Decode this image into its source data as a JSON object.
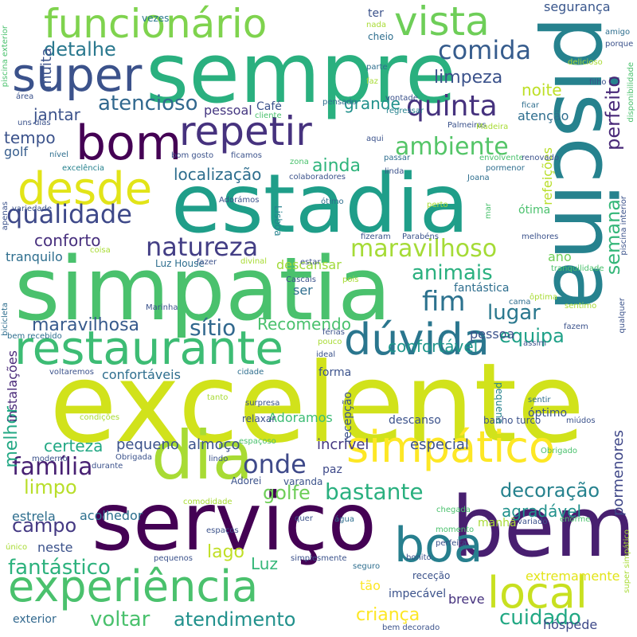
{
  "palette": [
    "#440154",
    "#46327e",
    "#365c8d",
    "#277f8e",
    "#1fa187",
    "#4ac16d",
    "#a0da39",
    "#fde725"
  ],
  "words": [
    [
      "excelente",
      "#d1e21b"
    ],
    [
      "serviço",
      "#440154"
    ],
    [
      "estadia",
      "#1f9e89"
    ],
    [
      "simpatia",
      "#4ac16d"
    ],
    [
      "piscina",
      "#26828e"
    ],
    [
      "sempre",
      "#2ab07f"
    ],
    [
      "bem",
      "#481f70"
    ],
    [
      "restaurante",
      "#3dbc74"
    ],
    [
      "dia",
      "#a8db34"
    ],
    [
      "simpático",
      "#fde725"
    ],
    [
      "boa",
      "#277f8e"
    ],
    [
      "local",
      "#c8e020"
    ],
    [
      "dúvida",
      "#2a768e"
    ],
    [
      "experiência",
      "#4ac16d"
    ],
    [
      "desde",
      "#e2e418"
    ],
    [
      "repetir",
      "#46327e"
    ],
    [
      "funcionário",
      "#7fd34e"
    ],
    [
      "vista",
      "#6ece58"
    ],
    [
      "bom",
      "#440154"
    ],
    [
      "super",
      "#3b528b"
    ],
    [
      "família",
      "#482173"
    ],
    [
      "onde",
      "#3e4989"
    ],
    [
      "comida",
      "#365c8d"
    ],
    [
      "quinta",
      "#46327e"
    ],
    [
      "natureza",
      "#433e85"
    ],
    [
      "maravilhoso",
      "#a5db36"
    ],
    [
      "fim",
      "#2c728e"
    ],
    [
      "qualidade",
      "#3e4989"
    ],
    [
      "ambiente",
      "#54c568"
    ],
    [
      "atencioso",
      "#31688e"
    ],
    [
      "semana",
      "#35b779"
    ],
    [
      "perfeito",
      "#482878"
    ],
    [
      "lugar",
      "#2a788e"
    ],
    [
      "detalhe",
      "#2a788e"
    ],
    [
      "limpeza",
      "#3b528b"
    ],
    [
      "decoração",
      "#26828e"
    ],
    [
      "bastante",
      "#2ab07f"
    ],
    [
      "limpo",
      "#b8de29"
    ],
    [
      "atendimento",
      "#21918c"
    ],
    [
      "voltar",
      "#4ac16d"
    ],
    [
      "cuidado",
      "#22a884"
    ],
    [
      "fantástico",
      "#2db27d"
    ],
    [
      "criança",
      "#fde725"
    ],
    [
      "campo",
      "#443983"
    ],
    [
      "equipa",
      "#1fa188"
    ],
    [
      "animais",
      "#2ab07f"
    ],
    [
      "golfe",
      "#6ece58"
    ],
    [
      "sítio",
      "#31688e"
    ],
    [
      "maravilhosa",
      "#375a8c"
    ],
    [
      "Recomendo",
      "#4ac16d"
    ],
    [
      "ainda",
      "#2fb47c"
    ],
    [
      "localização",
      "#2e6e8e"
    ],
    [
      "conforto",
      "#472f7d"
    ],
    [
      "muita",
      "#3b528b"
    ],
    [
      "melhor",
      "#22a884"
    ],
    [
      "certeza",
      "#22a884"
    ],
    [
      "jantar",
      "#3b528b"
    ],
    [
      "tempo",
      "#3b528b"
    ],
    [
      "grande",
      "#21918c"
    ],
    [
      "noite",
      "#bddf26"
    ],
    [
      "atenção",
      "#2e6e8e"
    ],
    [
      "confortável",
      "#1f968b"
    ],
    [
      "agradável",
      "#21918c"
    ],
    [
      "segurança",
      "#39568c"
    ],
    [
      "descansar",
      "#a0da39"
    ],
    [
      "incrível",
      "#453781"
    ],
    [
      "especial",
      "#3b528b"
    ],
    [
      "pormenores",
      "#3f4788"
    ],
    [
      "tranquilo",
      "#2e6e8e"
    ],
    [
      "Luz",
      "#35b779"
    ],
    [
      "lago",
      "#c0df25"
    ],
    [
      "breve",
      "#46327e"
    ],
    [
      "extremamente",
      "#e2e418"
    ],
    [
      "refeições",
      "#b8de29"
    ],
    [
      "estrela",
      "#2e6e8e"
    ],
    [
      "acolhedor",
      "#2d708e"
    ],
    [
      "pessoa",
      "#3b528b"
    ],
    [
      "pequeno",
      "#3b528b"
    ],
    [
      "almoço",
      "#3b528b"
    ],
    [
      "fantástica",
      "#2e6e8e"
    ],
    [
      "instalações",
      "#482878"
    ],
    [
      "confortáveis",
      "#2e6e8e"
    ],
    [
      "Adoramos",
      "#3dbc74"
    ],
    [
      "neste",
      "#3b528b"
    ],
    [
      "hóspede",
      "#3e4989"
    ],
    [
      "tão",
      "#fde725"
    ],
    [
      "golf",
      "#365d8d"
    ],
    [
      "ano",
      "#6ece58"
    ],
    [
      "Café",
      "#3b528b"
    ],
    [
      "pessoal",
      "#453781"
    ],
    [
      "Luz House",
      "#2e6e8e"
    ],
    [
      "ter",
      "#3b528b"
    ],
    [
      "manhã",
      "#a8db34"
    ],
    [
      "paz",
      "#3e4989"
    ],
    [
      "recepção",
      "#3b528b"
    ],
    [
      "ser",
      "#2e6e8e"
    ],
    [
      "exterior",
      "#31688e"
    ],
    [
      "vezes",
      "#2a788e"
    ],
    [
      "nada",
      "#a8db34"
    ],
    [
      "cheio",
      "#2e6e8e"
    ],
    [
      "amigo",
      "#2e6e8e"
    ],
    [
      "porque",
      "#3b528b"
    ],
    [
      "delicioso",
      "#a8db34"
    ],
    [
      "filho",
      "#3b528b"
    ],
    [
      "parte",
      "#2e6e8e"
    ],
    [
      "faz",
      "#a8db34"
    ],
    [
      "vontade",
      "#3b528b"
    ],
    [
      "regressar",
      "#26828e"
    ],
    [
      "ficar",
      "#2e6e8e"
    ],
    [
      "área",
      "#3b528b"
    ],
    [
      "uns dias",
      "#3b528b"
    ],
    [
      "cliente",
      "#4ac16d"
    ],
    [
      "pensado",
      "#2e6e8e"
    ],
    [
      "Palmeiras",
      "#3b528b"
    ],
    [
      "Madeira",
      "#a8db34"
    ],
    [
      "aqui",
      "#3b528b"
    ],
    [
      "ficamos",
      "#3b528b"
    ],
    [
      "bom gosto",
      "#3b528b"
    ],
    [
      "nível",
      "#2e6e8e"
    ],
    [
      "passar",
      "#2e6e8e"
    ],
    [
      "linda",
      "#3b528b"
    ],
    [
      "envolvente",
      "#4ac16d"
    ],
    [
      "pormenor",
      "#2e6e8e"
    ],
    [
      "renovado",
      "#3b528b"
    ],
    [
      "colaboradores",
      "#3b528b"
    ],
    [
      "Joana",
      "#2e6e8e"
    ],
    [
      "zona",
      "#4ac16d"
    ],
    [
      "excelência",
      "#26828e"
    ],
    [
      "apenas",
      "#3b528b"
    ],
    [
      "variedade",
      "#3b528b"
    ],
    [
      "Adorámos",
      "#3b528b"
    ],
    [
      "Lisboa",
      "#26828e"
    ],
    [
      "ótimo",
      "#2e6e8e"
    ],
    [
      "perto",
      "#a8db34"
    ],
    [
      "mar",
      "#4ac16d"
    ],
    [
      "ótima",
      "#4ac16d"
    ],
    [
      "fizeram",
      "#3b528b"
    ],
    [
      "Parabéns",
      "#3b528b"
    ],
    [
      "melhores",
      "#3b528b"
    ],
    [
      "coisa",
      "#a8db34"
    ],
    [
      "fazer",
      "#3b528b"
    ],
    [
      "divinal",
      "#a8db34"
    ],
    [
      "estar",
      "#3b528b"
    ],
    [
      "tranquilidade",
      "#4ac16d"
    ],
    [
      "Cascais",
      "#3b528b"
    ],
    [
      "pois",
      "#a8db34"
    ],
    [
      "bicicleta",
      "#2e6e8e"
    ],
    [
      "ôptima",
      "#a8db34"
    ],
    [
      "cama",
      "#2e6e8e"
    ],
    [
      "sentimo",
      "#a8db34"
    ],
    [
      "Marinha",
      "#3b528b"
    ],
    [
      "bem recebido",
      "#2e6e8e"
    ],
    [
      "férias",
      "#3b528b"
    ],
    [
      "pouco",
      "#a8db34"
    ],
    [
      "assim",
      "#3b528b"
    ],
    [
      "voltaremos",
      "#3b528b"
    ],
    [
      "cidade",
      "#2e6e8e"
    ],
    [
      "ideal",
      "#3b528b"
    ],
    [
      "forma",
      "#3b528b"
    ],
    [
      "tanto",
      "#a8db34"
    ],
    [
      "surpresa",
      "#3b528b"
    ],
    [
      "relaxar",
      "#3b528b"
    ],
    [
      "sentir",
      "#2e6e8e"
    ],
    [
      "óptimo",
      "#3b528b"
    ],
    [
      "condições",
      "#a8db34"
    ],
    [
      "descanso",
      "#3b528b"
    ],
    [
      "banho turco",
      "#3b528b"
    ],
    [
      "miúdos",
      "#3b528b"
    ],
    [
      "espaçoso",
      "#4ac16d"
    ],
    [
      "Obrigado",
      "#4ac16d"
    ],
    [
      "Obrigada",
      "#3b528b"
    ],
    [
      "lindo",
      "#3b528b"
    ],
    [
      "moderno",
      "#3b528b"
    ],
    [
      "durante",
      "#3b528b"
    ],
    [
      "Adorei",
      "#3b528b"
    ],
    [
      "varanda",
      "#3b528b"
    ],
    [
      "comodidade",
      "#a8db34"
    ],
    [
      "chegada",
      "#4ac16d"
    ],
    [
      "enorme",
      "#4ac16d"
    ],
    [
      "espaços",
      "#3b528b"
    ],
    [
      "quer",
      "#3b528b"
    ],
    [
      "água",
      "#2e6e8e"
    ],
    [
      "momento",
      "#4ac16d"
    ],
    [
      "variado",
      "#3b528b"
    ],
    [
      "único",
      "#a8db34"
    ],
    [
      "pequenos",
      "#3b528b"
    ],
    [
      "simplesmente",
      "#3b528b"
    ],
    [
      "seguro",
      "#2e6e8e"
    ],
    [
      "bonito",
      "#3b528b"
    ],
    [
      "perfeita",
      "#3b528b"
    ],
    [
      "receção",
      "#3b528b"
    ],
    [
      "impecável",
      "#3b528b"
    ],
    [
      "bem decorado",
      "#3b528b"
    ],
    [
      "super simpático",
      "#a8db34"
    ],
    [
      "qualquer",
      "#3b528b"
    ],
    [
      "fazem",
      "#3b528b"
    ],
    [
      "piscina exterior",
      "#4ac16d"
    ],
    [
      "piscina interior",
      "#3b528b"
    ],
    [
      "disponibilidade",
      "#4ac16d"
    ],
    [
      "pequena",
      "#26828e"
    ]
  ]
}
